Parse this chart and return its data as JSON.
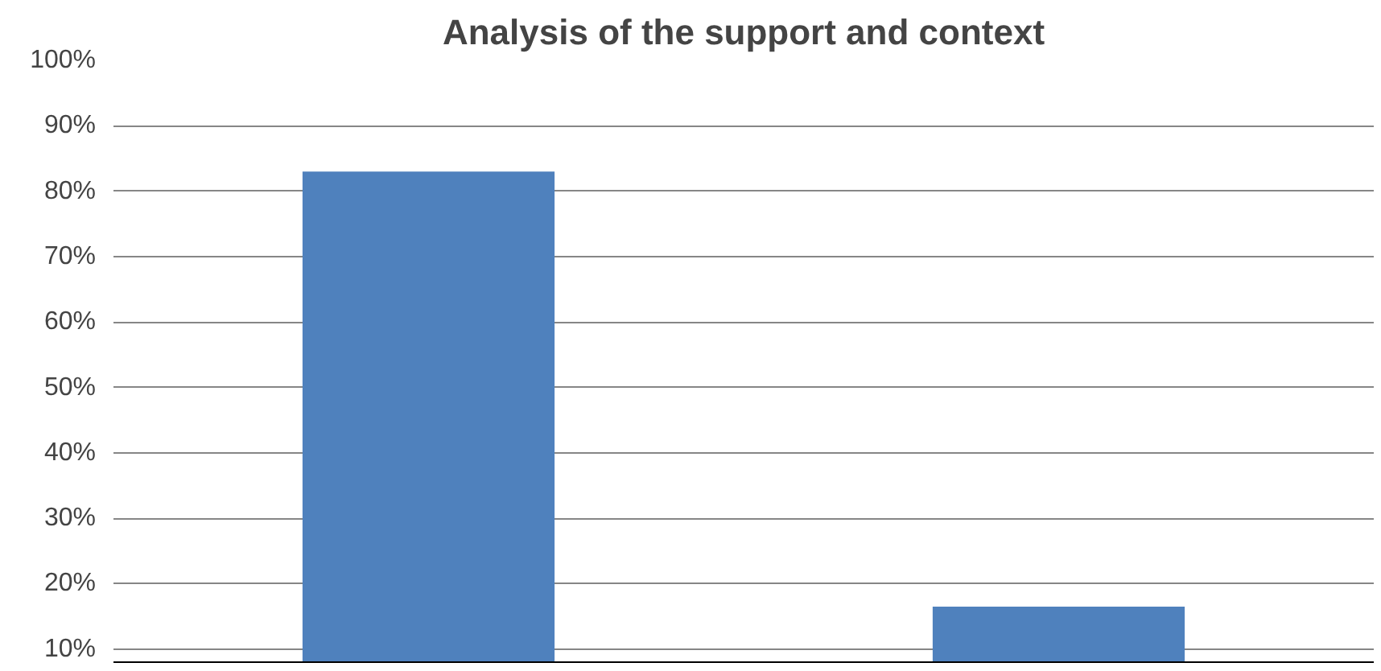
{
  "chart_data": {
    "type": "bar",
    "title": "Analysis of the support and context",
    "categories": [
      null,
      null
    ],
    "values": [
      83,
      16.5
    ],
    "color": "#4f81bd",
    "ylim": [
      8,
      100
    ],
    "yticks": [
      {
        "value": 10,
        "label": "10%"
      },
      {
        "value": 20,
        "label": "20%"
      },
      {
        "value": 30,
        "label": "30%"
      },
      {
        "value": 40,
        "label": "40%"
      },
      {
        "value": 50,
        "label": "50%"
      },
      {
        "value": 60,
        "label": "60%"
      },
      {
        "value": 70,
        "label": "70%"
      },
      {
        "value": 80,
        "label": "80%"
      },
      {
        "value": 90,
        "label": "90%"
      },
      {
        "value": 100,
        "label": "100%"
      }
    ],
    "grid": "y",
    "tick_labels": "y"
  }
}
